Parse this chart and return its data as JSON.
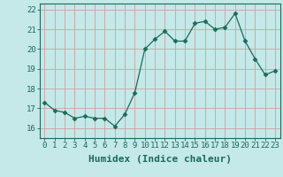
{
  "x": [
    0,
    1,
    2,
    3,
    4,
    5,
    6,
    7,
    8,
    9,
    10,
    11,
    12,
    13,
    14,
    15,
    16,
    17,
    18,
    19,
    20,
    21,
    22,
    23
  ],
  "y": [
    17.3,
    16.9,
    16.8,
    16.5,
    16.6,
    16.5,
    16.5,
    16.1,
    16.7,
    17.8,
    20.0,
    20.5,
    20.9,
    20.4,
    20.4,
    21.3,
    21.4,
    21.0,
    21.1,
    21.8,
    20.4,
    19.5,
    18.7,
    18.9
  ],
  "line_color": "#1a6b5a",
  "marker": "D",
  "marker_size": 2.5,
  "bg_color": "#c5e8e8",
  "grid_color": "#d0a0a0",
  "xlabel": "Humidex (Indice chaleur)",
  "xlim": [
    -0.5,
    23.5
  ],
  "ylim": [
    15.5,
    22.3
  ],
  "yticks": [
    16,
    17,
    18,
    19,
    20,
    21,
    22
  ],
  "xticks": [
    0,
    1,
    2,
    3,
    4,
    5,
    6,
    7,
    8,
    9,
    10,
    11,
    12,
    13,
    14,
    15,
    16,
    17,
    18,
    19,
    20,
    21,
    22,
    23
  ],
  "tick_label_fontsize": 6.5,
  "xlabel_fontsize": 8,
  "tick_color": "#1a6b5a",
  "label_color": "#1a6b5a"
}
